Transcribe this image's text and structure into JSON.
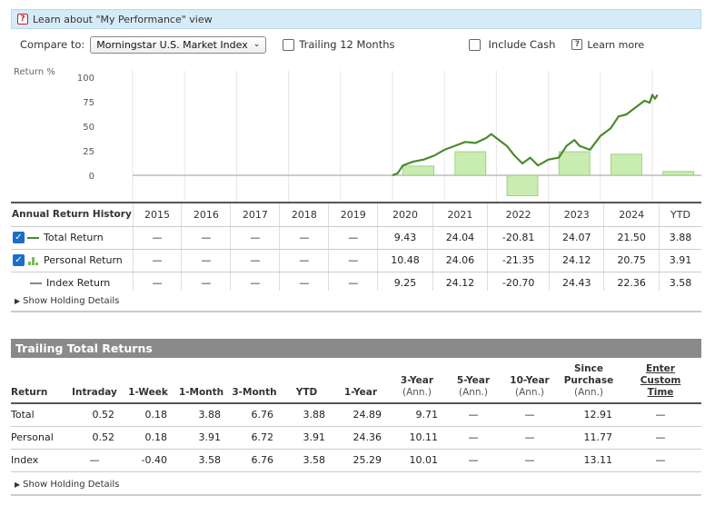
{
  "info_bar": {
    "text": "Learn about \"My Performance\" view",
    "icon": "help-icon"
  },
  "controls": {
    "compare_label": "Compare to:",
    "compare_value": "Morningstar U.S. Market Index",
    "trailing_label": "Trailing 12 Months",
    "include_cash_label": "Include Cash",
    "learn_more": "Learn more"
  },
  "chart_data": {
    "type": "line",
    "ylabel": "Return %",
    "yticks": [
      "100",
      "75",
      "50",
      "25",
      "0"
    ],
    "ylim": [
      -12,
      105
    ],
    "years": [
      "2015",
      "2016",
      "2017",
      "2018",
      "2019",
      "2020",
      "2021",
      "2022",
      "2023",
      "2024",
      "YTD"
    ],
    "bars": [
      null,
      null,
      null,
      null,
      null,
      9.43,
      24.04,
      -20.81,
      24.07,
      21.5,
      3.88
    ],
    "line_color": "#4a8a2f",
    "bar_color": "#c9ecb1",
    "bar_border": "#8fcb72",
    "cumulative_line": [
      [
        5.0,
        0
      ],
      [
        5.1,
        2
      ],
      [
        5.2,
        10
      ],
      [
        5.4,
        14
      ],
      [
        5.6,
        16
      ],
      [
        5.8,
        20
      ],
      [
        6.0,
        26
      ],
      [
        6.2,
        30
      ],
      [
        6.4,
        34
      ],
      [
        6.6,
        33
      ],
      [
        6.8,
        38
      ],
      [
        6.9,
        42
      ],
      [
        7.0,
        38
      ],
      [
        7.2,
        30
      ],
      [
        7.35,
        20
      ],
      [
        7.5,
        12
      ],
      [
        7.65,
        18
      ],
      [
        7.8,
        10
      ],
      [
        8.0,
        16
      ],
      [
        8.2,
        18
      ],
      [
        8.35,
        30
      ],
      [
        8.5,
        36
      ],
      [
        8.6,
        30
      ],
      [
        8.8,
        26
      ],
      [
        9.0,
        40
      ],
      [
        9.2,
        48
      ],
      [
        9.35,
        60
      ],
      [
        9.5,
        62
      ],
      [
        9.7,
        70
      ],
      [
        9.85,
        76
      ],
      [
        9.95,
        74
      ],
      [
        10.0,
        82
      ],
      [
        10.05,
        78
      ],
      [
        10.1,
        82
      ]
    ]
  },
  "annual": {
    "header": "Annual Return History",
    "rows": [
      {
        "label": "Total Return",
        "values": [
          "—",
          "—",
          "—",
          "—",
          "—",
          "9.43",
          "24.04",
          "-20.81",
          "24.07",
          "21.50",
          "3.88"
        ]
      },
      {
        "label": "Personal Return",
        "values": [
          "—",
          "—",
          "—",
          "—",
          "—",
          "10.48",
          "24.06",
          "-21.35",
          "24.12",
          "20.75",
          "3.91"
        ]
      },
      {
        "label": "Index Return",
        "values": [
          "—",
          "—",
          "—",
          "—",
          "—",
          "9.25",
          "24.12",
          "-20.70",
          "24.43",
          "22.36",
          "3.58"
        ]
      }
    ]
  },
  "show_holding_details": "Show Holding Details",
  "trailing": {
    "title": "Trailing Total Returns",
    "columns": [
      {
        "line1": "Return",
        "line2": "",
        "line3": ""
      },
      {
        "line1": "Intraday",
        "line2": "",
        "line3": ""
      },
      {
        "line1": "1-Week",
        "line2": "",
        "line3": ""
      },
      {
        "line1": "1-Month",
        "line2": "",
        "line3": ""
      },
      {
        "line1": "3-Month",
        "line2": "",
        "line3": ""
      },
      {
        "line1": "YTD",
        "line2": "",
        "line3": ""
      },
      {
        "line1": "1-Year",
        "line2": "",
        "line3": ""
      },
      {
        "line1": "",
        "line2": "3-Year",
        "line3": "(Ann.)"
      },
      {
        "line1": "",
        "line2": "5-Year",
        "line3": "(Ann.)"
      },
      {
        "line1": "",
        "line2": "10-Year",
        "line3": "(Ann.)"
      },
      {
        "line1": "Since",
        "line2": "Purchase",
        "line3": "(Ann.)"
      },
      {
        "line1": "Enter",
        "line2": "Custom",
        "line3": "Time"
      }
    ],
    "rows": [
      {
        "label": "Total",
        "values": [
          "0.52",
          "0.18",
          "3.88",
          "6.76",
          "3.88",
          "24.89",
          "9.71",
          "—",
          "—",
          "12.91",
          "—"
        ]
      },
      {
        "label": "Personal",
        "values": [
          "0.52",
          "0.18",
          "3.91",
          "6.72",
          "3.91",
          "24.36",
          "10.11",
          "—",
          "—",
          "11.77",
          "—"
        ]
      },
      {
        "label": "Index",
        "values": [
          "—",
          "-0.40",
          "3.58",
          "6.76",
          "3.58",
          "25.29",
          "10.01",
          "—",
          "—",
          "13.11",
          "—"
        ]
      }
    ]
  }
}
